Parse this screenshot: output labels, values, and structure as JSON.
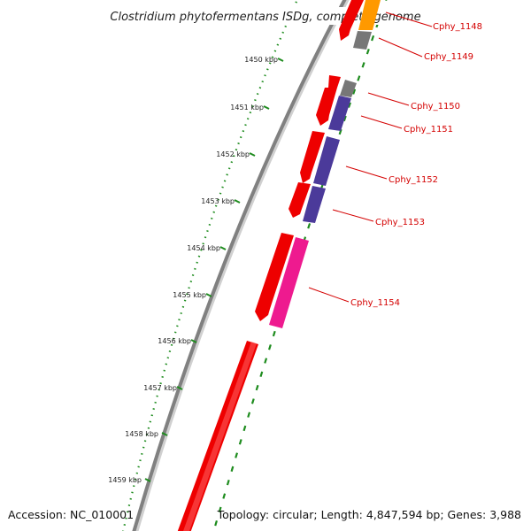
{
  "title": "Clostridium phytofermentans ISDg, complete genome",
  "accession_text": "Accession: NC_010001",
  "summary_text": "Topology: circular; Length: 4,847,594 bp; Genes: 3,988",
  "scale_labels": [
    "1450 kbp",
    "1451 kbp",
    "1452 kbp",
    "1453 kbp",
    "1454 kbp",
    "1455 kbp",
    "1456 kbp",
    "1457 kbp",
    "1458 kbp",
    "1459 kbp"
  ],
  "gene_labels": [
    "Cphy_1148",
    "Cphy_1149",
    "Cphy_1150",
    "Cphy_1151",
    "Cphy_1152",
    "Cphy_1153",
    "Cphy_1154"
  ],
  "colors": {
    "backbone": "#808080",
    "feature_red": "#ee0000",
    "feature_blue": "#4b3a9a",
    "feature_pink": "#ee1a8f",
    "feature_orange": "#ff9900",
    "feature_gray": "#777777",
    "tick_green": "#1e8c1e",
    "label_red": "#d40000"
  }
}
